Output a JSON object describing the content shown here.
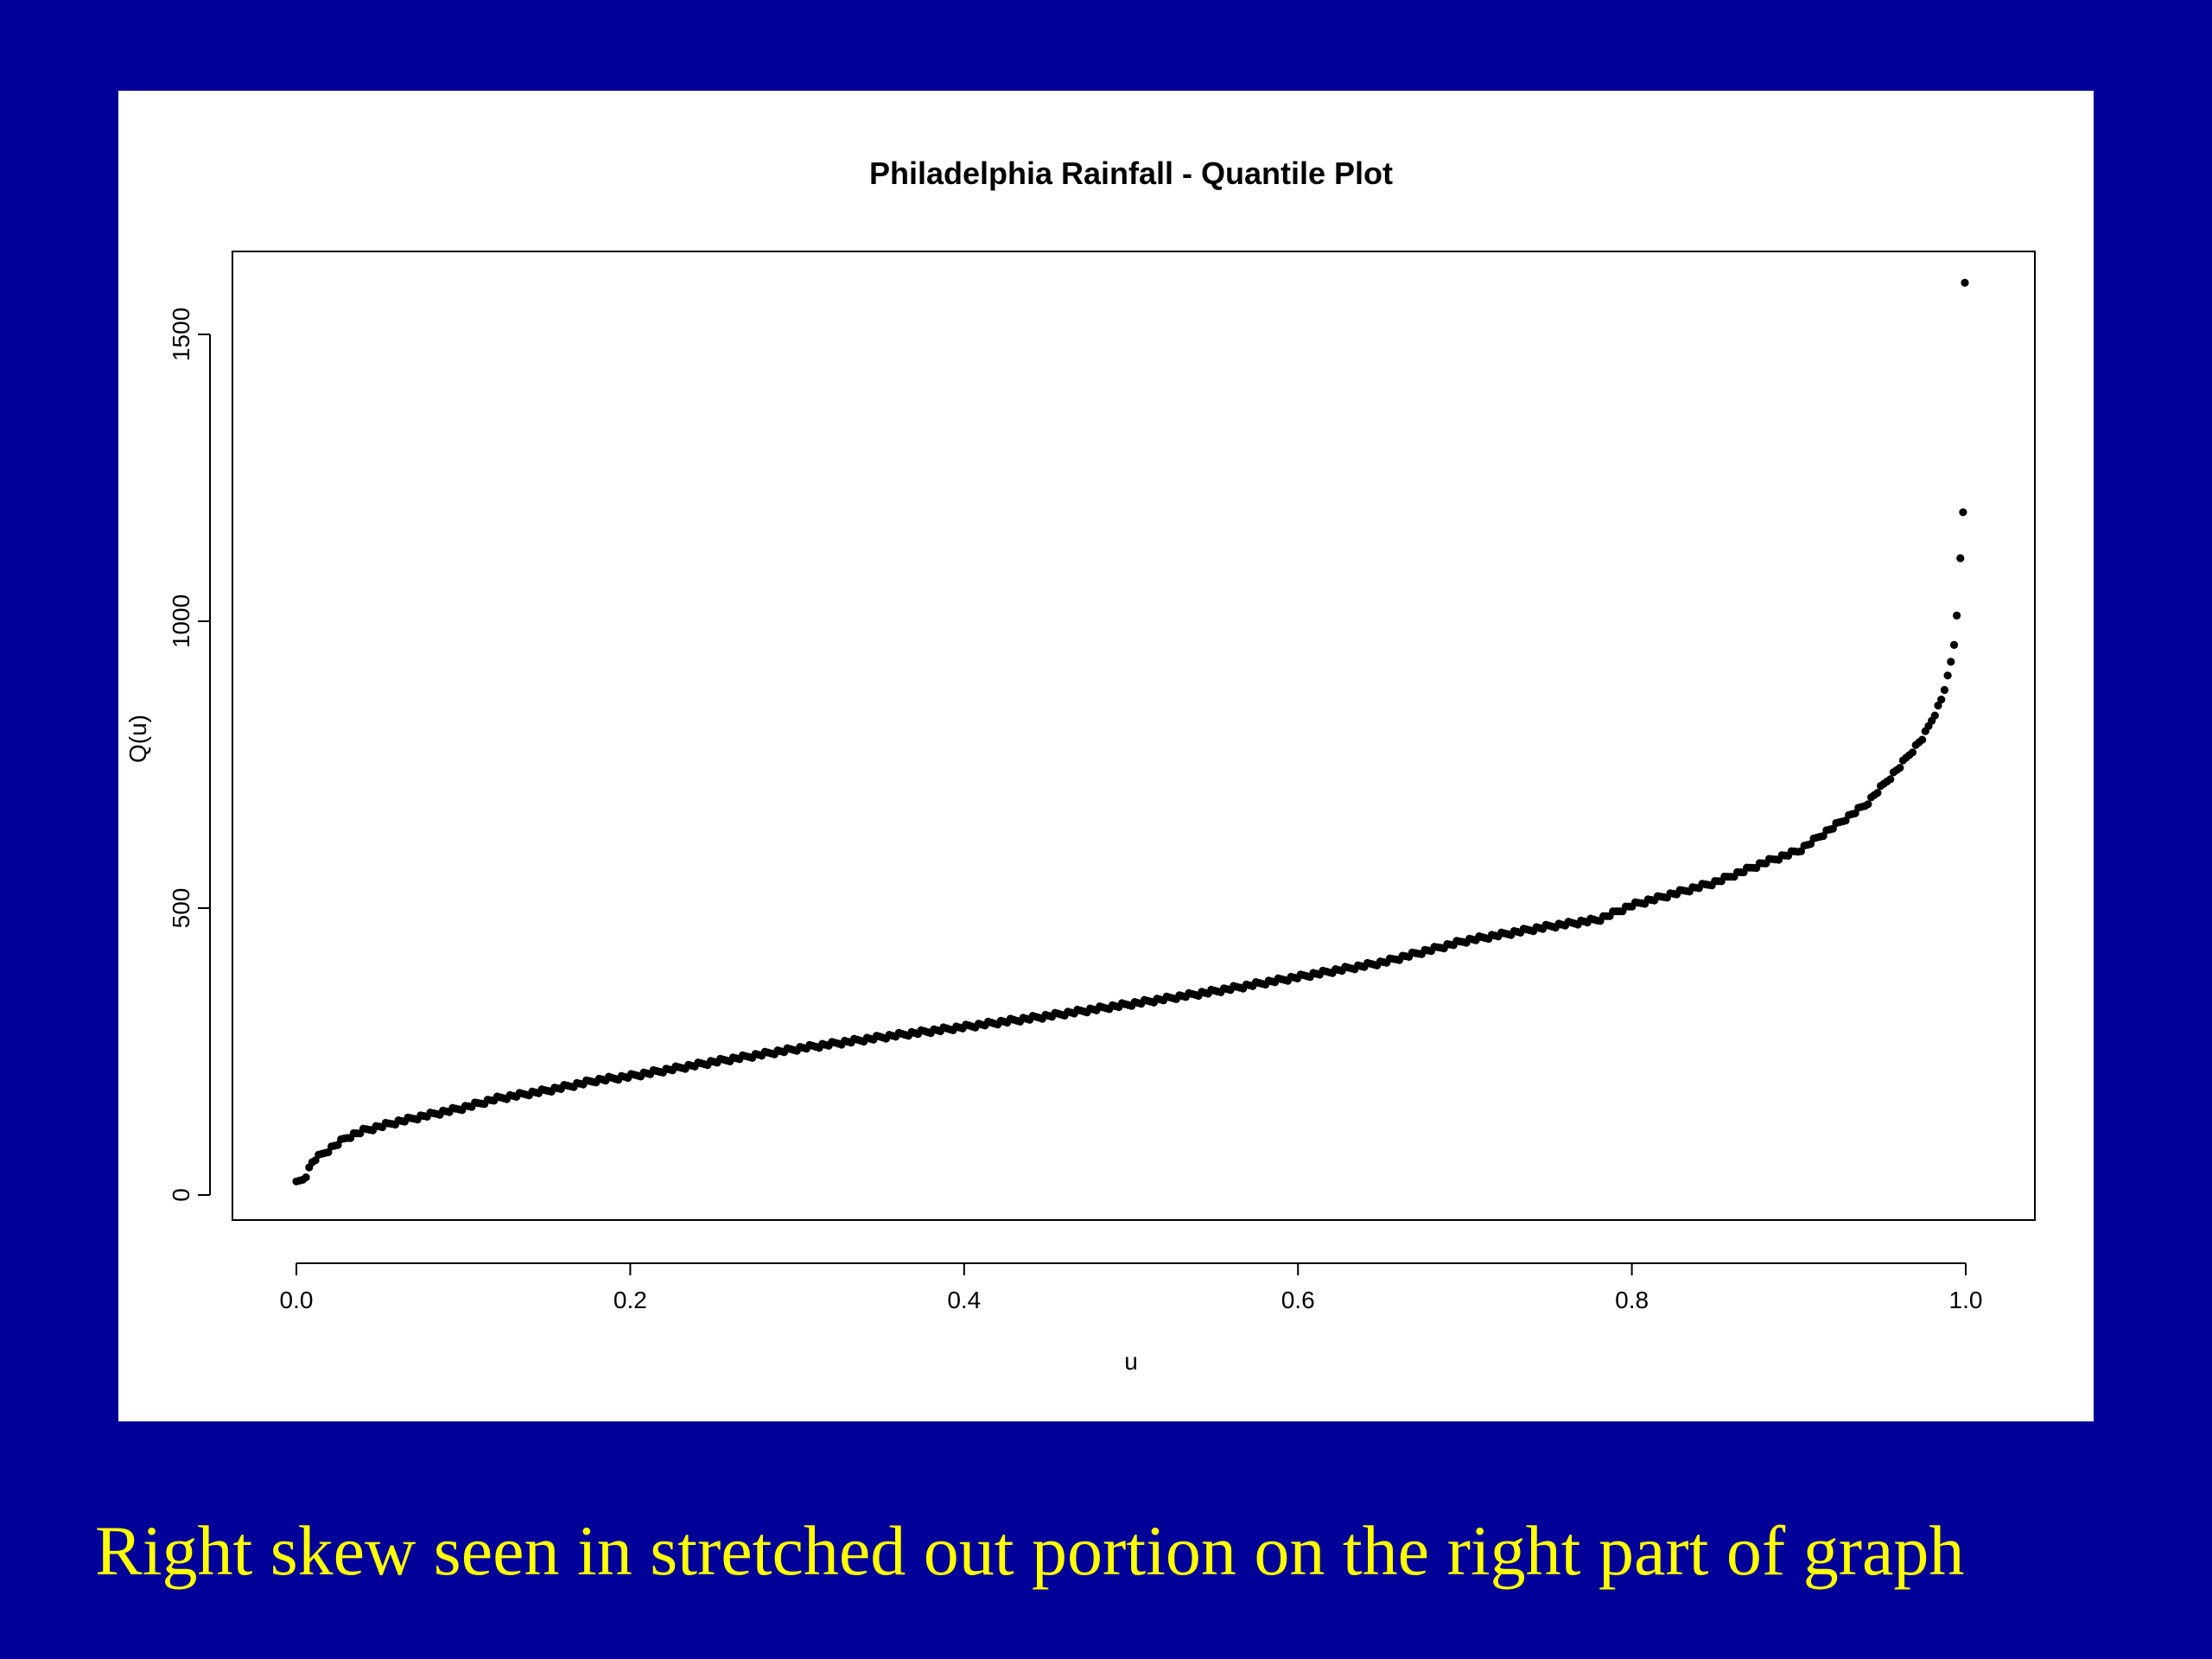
{
  "slide": {
    "background_color": "#000099",
    "caption": "Right skew seen in stretched out portion on the right part of graph",
    "caption_color": "#ffff00"
  },
  "chart_data": {
    "type": "scatter",
    "title": "Philadelphia Rainfall - Quantile Plot",
    "xlabel": "u",
    "ylabel": "Q(u)",
    "xlim": [
      0.0,
      1.0
    ],
    "ylim": [
      0,
      1500
    ],
    "x_ticks": [
      "0.0",
      "0.2",
      "0.4",
      "0.6",
      "0.8",
      "1.0"
    ],
    "y_ticks": [
      "0",
      "500",
      "1000",
      "1500"
    ],
    "grid": false,
    "legend": "none",
    "point_color": "#000000",
    "quantile_curve": [
      {
        "u": 0.0,
        "q": 20
      },
      {
        "u": 0.005,
        "q": 30
      },
      {
        "u": 0.01,
        "q": 60
      },
      {
        "u": 0.02,
        "q": 80
      },
      {
        "u": 0.03,
        "q": 100
      },
      {
        "u": 0.04,
        "q": 112
      },
      {
        "u": 0.06,
        "q": 127
      },
      {
        "u": 0.08,
        "q": 140
      },
      {
        "u": 0.1,
        "q": 152
      },
      {
        "u": 0.12,
        "q": 168
      },
      {
        "u": 0.15,
        "q": 182
      },
      {
        "u": 0.18,
        "q": 200
      },
      {
        "u": 0.2,
        "q": 207
      },
      {
        "u": 0.25,
        "q": 232
      },
      {
        "u": 0.3,
        "q": 255
      },
      {
        "u": 0.35,
        "q": 275
      },
      {
        "u": 0.4,
        "q": 293
      },
      {
        "u": 0.45,
        "q": 312
      },
      {
        "u": 0.5,
        "q": 333
      },
      {
        "u": 0.55,
        "q": 355
      },
      {
        "u": 0.6,
        "q": 380
      },
      {
        "u": 0.65,
        "q": 405
      },
      {
        "u": 0.7,
        "q": 443
      },
      {
        "u": 0.75,
        "q": 468
      },
      {
        "u": 0.78,
        "q": 480
      },
      {
        "u": 0.8,
        "q": 505
      },
      {
        "u": 0.85,
        "q": 545
      },
      {
        "u": 0.88,
        "q": 580
      },
      {
        "u": 0.9,
        "q": 600
      },
      {
        "u": 0.92,
        "q": 640
      },
      {
        "u": 0.94,
        "q": 680
      },
      {
        "u": 0.96,
        "q": 745
      },
      {
        "u": 0.975,
        "q": 800
      },
      {
        "u": 0.985,
        "q": 860
      },
      {
        "u": 0.99,
        "q": 910
      },
      {
        "u": 0.993,
        "q": 960
      }
    ],
    "outlier_points": [
      {
        "u": 0.9946,
        "q": 1010
      },
      {
        "u": 0.9968,
        "q": 1110
      },
      {
        "u": 0.9984,
        "q": 1190
      },
      {
        "u": 0.9995,
        "q": 1590
      }
    ]
  }
}
